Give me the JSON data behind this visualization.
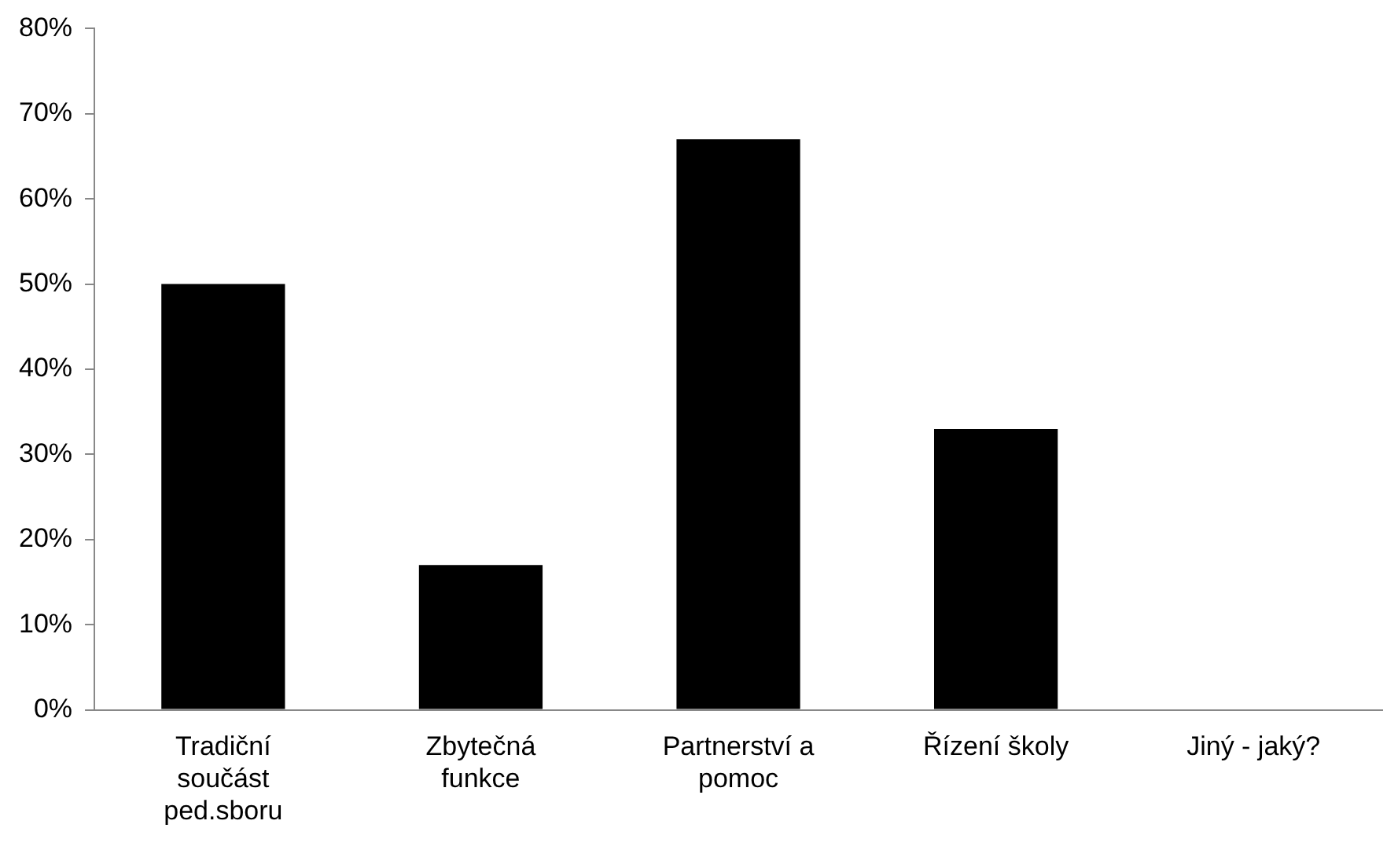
{
  "chart_data": {
    "type": "bar",
    "categories": [
      "Tradiční součást ped.sboru",
      "Zbytečná funkce",
      "Partnerství a pomoc",
      "Řízení školy",
      "Jiný - jaký?"
    ],
    "values": [
      50,
      17,
      67,
      33,
      0
    ],
    "color": "#000000",
    "ylim": [
      0,
      80
    ],
    "yticks": [
      {
        "value": 0,
        "label": "0%"
      },
      {
        "value": 10,
        "label": "10%"
      },
      {
        "value": 20,
        "label": "20%"
      },
      {
        "value": 30,
        "label": "30%"
      },
      {
        "value": 40,
        "label": "40%"
      },
      {
        "value": 50,
        "label": "50%"
      },
      {
        "value": 60,
        "label": "60%"
      },
      {
        "value": 70,
        "label": "70%"
      },
      {
        "value": 80,
        "label": "80%"
      }
    ],
    "grid": false,
    "legend": false
  }
}
